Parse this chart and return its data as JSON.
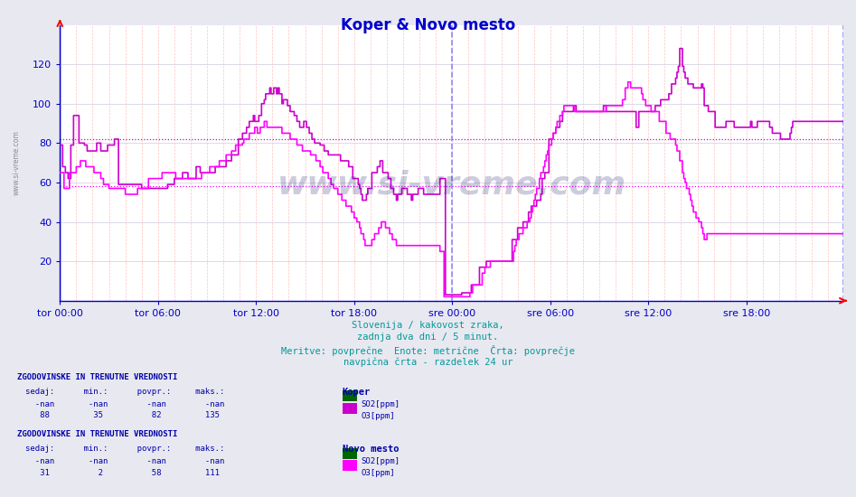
{
  "title": "Koper & Novo mesto",
  "background_color": "#e8e8f0",
  "plot_background": "#ffffff",
  "grid_color_major": "#ff9999",
  "xlabel_ticks": [
    "tor 00:00",
    "tor 06:00",
    "tor 12:00",
    "tor 18:00",
    "sre 00:00",
    "sre 06:00",
    "sre 12:00",
    "sre 18:00"
  ],
  "xlabel_tick_positions": [
    0,
    72,
    144,
    216,
    288,
    360,
    432,
    504
  ],
  "ymin": 0,
  "ymax": 140,
  "yticks": [
    20,
    40,
    60,
    80,
    100,
    120
  ],
  "total_points": 576,
  "subtitle_lines": [
    "Slovenija / kakovost zraka,",
    "zadnja dva dni / 5 minut.",
    "Meritve: povprečne  Enote: metrične  Črta: povprečje",
    "navpična črta - razdelek 24 ur"
  ],
  "watermark": "www.si-vreme.com",
  "koper_so2_color": "#006600",
  "koper_o3_color": "#cc00cc",
  "novomesto_so2_color": "#006600",
  "novomesto_o3_color": "#ff00ff",
  "avg_value_koper": 82,
  "avg_value_novomesto": 58,
  "day_divider_color": "#8888ff",
  "axis_color": "#0000cc",
  "title_color": "#0000cc",
  "subtitle_color": "#009999",
  "stats_color": "#0000aa",
  "legend_text_color": "#0000aa",
  "koper_o3_data": [
    79,
    79,
    68,
    68,
    65,
    65,
    62,
    62,
    79,
    79,
    94,
    94,
    94,
    94,
    80,
    80,
    80,
    80,
    79,
    79,
    76,
    76,
    76,
    76,
    76,
    76,
    76,
    80,
    80,
    80,
    76,
    76,
    76,
    76,
    76,
    79,
    79,
    79,
    79,
    79,
    82,
    82,
    82,
    59,
    59,
    59,
    59,
    59,
    59,
    59,
    59,
    59,
    59,
    59,
    59,
    59,
    59,
    59,
    59,
    59,
    57,
    57,
    57,
    57,
    57,
    57,
    57,
    57,
    57,
    57,
    57,
    57,
    57,
    57,
    57,
    57,
    57,
    57,
    57,
    59,
    59,
    59,
    59,
    59,
    62,
    62,
    62,
    62,
    62,
    62,
    65,
    65,
    65,
    65,
    62,
    62,
    62,
    62,
    62,
    62,
    68,
    68,
    68,
    65,
    65,
    65,
    65,
    65,
    65,
    65,
    65,
    65,
    65,
    65,
    68,
    68,
    68,
    68,
    68,
    68,
    68,
    68,
    71,
    71,
    71,
    71,
    74,
    74,
    74,
    74,
    74,
    82,
    82,
    82,
    85,
    85,
    85,
    88,
    88,
    91,
    91,
    91,
    94,
    91,
    91,
    91,
    94,
    94,
    100,
    100,
    102,
    105,
    105,
    105,
    108,
    105,
    105,
    108,
    108,
    105,
    108,
    105,
    105,
    100,
    102,
    102,
    102,
    99,
    99,
    96,
    96,
    96,
    94,
    94,
    91,
    91,
    88,
    88,
    88,
    91,
    91,
    88,
    88,
    85,
    85,
    82,
    82,
    80,
    80,
    80,
    80,
    79,
    79,
    79,
    76,
    76,
    76,
    74,
    74,
    74,
    74,
    74,
    74,
    74,
    74,
    74,
    71,
    71,
    71,
    71,
    71,
    71,
    68,
    68,
    68,
    62,
    62,
    62,
    62,
    59,
    57,
    54,
    51,
    51,
    51,
    54,
    57,
    57,
    57,
    65,
    65,
    65,
    65,
    68,
    68,
    71,
    71,
    65,
    65,
    65,
    65,
    62,
    62,
    57,
    57,
    54,
    54,
    51,
    54,
    54,
    54,
    57,
    57,
    57,
    57,
    54,
    54,
    54,
    51,
    54,
    54,
    54,
    54,
    57,
    57,
    57,
    57,
    54,
    54,
    54,
    54,
    54,
    54,
    54,
    54,
    54,
    54,
    54,
    54,
    62,
    62,
    62,
    62,
    3,
    3,
    3,
    3,
    3,
    3,
    3,
    3,
    3,
    3,
    3,
    3,
    4,
    4,
    4,
    4,
    4,
    4,
    4,
    8,
    8,
    8,
    8,
    8,
    8,
    17,
    17,
    17,
    17,
    17,
    20,
    20,
    20,
    20,
    20,
    20,
    20,
    20,
    20,
    20,
    20,
    20,
    20,
    20,
    20,
    20,
    20,
    20,
    20,
    31,
    31,
    31,
    31,
    37,
    37,
    37,
    37,
    40,
    40,
    40,
    40,
    45,
    45,
    48,
    48,
    48,
    48,
    51,
    51,
    51,
    54,
    62,
    62,
    65,
    65,
    65,
    82,
    82,
    82,
    85,
    85,
    88,
    88,
    88,
    91,
    91,
    96,
    96,
    96,
    96,
    96,
    96,
    96,
    96,
    99,
    99,
    96,
    96,
    96,
    96,
    96,
    96,
    96,
    96,
    96,
    96,
    96,
    96,
    96,
    96,
    96,
    96,
    96,
    96,
    96,
    96,
    99,
    99,
    96,
    96,
    96,
    96,
    96,
    96,
    96,
    96,
    96,
    96,
    96,
    96,
    96,
    96,
    96,
    96,
    96,
    96,
    96,
    96,
    96,
    96,
    88,
    88,
    96,
    96,
    96,
    96,
    96,
    96,
    96,
    96,
    96,
    96,
    96,
    96,
    99,
    99,
    99,
    99,
    102,
    102,
    102,
    102,
    102,
    102,
    105,
    105,
    110,
    110,
    110,
    113,
    116,
    119,
    128,
    128,
    119,
    116,
    113,
    113,
    110,
    110,
    110,
    110,
    108,
    108,
    108,
    108,
    108,
    108,
    110,
    108,
    99,
    99,
    99,
    96,
    96,
    96,
    96,
    96,
    88,
    88,
    88,
    88,
    88,
    88,
    88,
    88,
    91,
    91,
    91,
    91,
    91,
    91,
    88,
    88,
    88,
    88,
    88,
    88,
    88,
    88,
    88,
    88,
    88,
    88,
    91,
    88,
    88,
    88,
    88,
    91,
    91,
    91,
    91,
    91,
    91,
    91,
    91,
    91,
    88,
    88,
    85,
    85,
    85,
    85,
    85,
    85,
    82,
    82,
    82,
    82,
    82,
    82,
    82,
    85,
    88,
    91,
    91
  ],
  "novomesto_o3_data": [
    65,
    65,
    65,
    57,
    57,
    57,
    57,
    65,
    65,
    65,
    65,
    65,
    68,
    68,
    68,
    71,
    71,
    71,
    71,
    68,
    68,
    68,
    68,
    68,
    68,
    65,
    65,
    65,
    65,
    65,
    62,
    62,
    59,
    59,
    59,
    59,
    57,
    57,
    57,
    57,
    57,
    57,
    57,
    57,
    57,
    57,
    57,
    57,
    54,
    54,
    54,
    54,
    54,
    54,
    54,
    54,
    54,
    57,
    57,
    57,
    57,
    57,
    57,
    57,
    57,
    62,
    62,
    62,
    62,
    62,
    62,
    62,
    62,
    62,
    62,
    65,
    65,
    65,
    65,
    65,
    65,
    65,
    65,
    65,
    65,
    62,
    62,
    62,
    62,
    62,
    62,
    62,
    62,
    62,
    62,
    62,
    62,
    62,
    62,
    62,
    62,
    62,
    62,
    62,
    65,
    65,
    65,
    65,
    65,
    65,
    68,
    68,
    68,
    68,
    68,
    68,
    68,
    71,
    71,
    71,
    71,
    71,
    74,
    74,
    74,
    74,
    76,
    76,
    76,
    79,
    79,
    79,
    79,
    79,
    80,
    82,
    82,
    82,
    82,
    85,
    85,
    85,
    85,
    88,
    88,
    85,
    85,
    88,
    88,
    88,
    91,
    91,
    88,
    88,
    88,
    88,
    88,
    88,
    88,
    88,
    88,
    88,
    88,
    85,
    85,
    85,
    85,
    85,
    85,
    82,
    82,
    82,
    82,
    82,
    79,
    79,
    79,
    79,
    76,
    76,
    76,
    76,
    76,
    76,
    74,
    74,
    74,
    74,
    71,
    71,
    71,
    68,
    68,
    65,
    65,
    65,
    65,
    62,
    62,
    59,
    59,
    57,
    57,
    57,
    54,
    54,
    54,
    51,
    51,
    51,
    48,
    48,
    48,
    48,
    45,
    45,
    42,
    42,
    40,
    40,
    37,
    34,
    34,
    31,
    28,
    28,
    28,
    28,
    28,
    31,
    31,
    34,
    34,
    34,
    37,
    37,
    40,
    40,
    40,
    37,
    37,
    37,
    34,
    34,
    31,
    31,
    31,
    28,
    28,
    28,
    28,
    28,
    28,
    28,
    28,
    28,
    28,
    28,
    28,
    28,
    28,
    28,
    28,
    28,
    28,
    28,
    28,
    28,
    28,
    28,
    28,
    28,
    28,
    28,
    28,
    28,
    28,
    28,
    28,
    25,
    25,
    25,
    2,
    2,
    2,
    2,
    2,
    2,
    2,
    2,
    2,
    2,
    2,
    2,
    2,
    2,
    2,
    2,
    2,
    2,
    2,
    4,
    4,
    8,
    8,
    8,
    8,
    8,
    8,
    8,
    14,
    14,
    17,
    17,
    17,
    17,
    20,
    20,
    20,
    20,
    20,
    20,
    20,
    20,
    20,
    20,
    20,
    20,
    20,
    20,
    20,
    20,
    20,
    25,
    28,
    31,
    31,
    34,
    34,
    34,
    37,
    37,
    37,
    40,
    40,
    42,
    45,
    48,
    51,
    54,
    57,
    57,
    62,
    65,
    65,
    68,
    71,
    74,
    76,
    79,
    79,
    82,
    85,
    85,
    88,
    91,
    91,
    94,
    94,
    96,
    99,
    99,
    99,
    99,
    99,
    99,
    99,
    99,
    96,
    96,
    96,
    96,
    96,
    96,
    96,
    96,
    96,
    96,
    96,
    96,
    96,
    96,
    96,
    96,
    96,
    96,
    96,
    96,
    96,
    96,
    96,
    99,
    99,
    99,
    99,
    99,
    99,
    99,
    99,
    99,
    99,
    99,
    99,
    102,
    102,
    108,
    108,
    111,
    111,
    108,
    108,
    108,
    108,
    108,
    108,
    108,
    108,
    105,
    102,
    102,
    99,
    99,
    99,
    99,
    96,
    96,
    96,
    96,
    96,
    96,
    91,
    91,
    91,
    91,
    91,
    85,
    85,
    85,
    82,
    82,
    82,
    82,
    79,
    76,
    76,
    71,
    71,
    65,
    62,
    60,
    57,
    57,
    54,
    51,
    48,
    45,
    45,
    42,
    42,
    40,
    40,
    37,
    34,
    31,
    31,
    34,
    34,
    34,
    34,
    34,
    34,
    34,
    34,
    34,
    34,
    34,
    34,
    34,
    34,
    34,
    34,
    34,
    34,
    34,
    34,
    34,
    34,
    34,
    34
  ]
}
